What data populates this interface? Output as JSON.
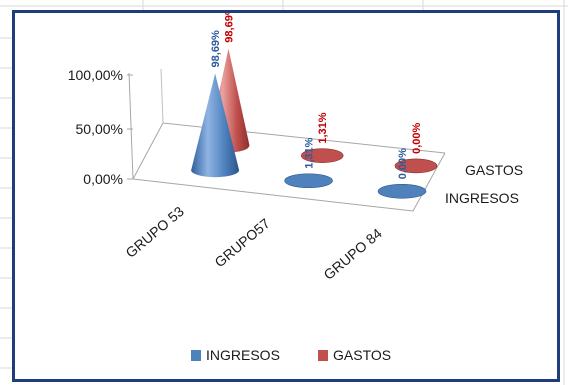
{
  "chart_data": {
    "type": "bar",
    "subtype": "3d-cone",
    "categories": [
      "GRUPO 53",
      "GRUPO57",
      "GRUPO 84"
    ],
    "series": [
      {
        "name": "INGRESOS",
        "values": [
          98.69,
          1.31,
          0.0
        ],
        "labels": [
          "98,69%",
          "1,31%",
          "0,00%"
        ],
        "color": "#4f81bd"
      },
      {
        "name": "GASTOS",
        "values": [
          98.69,
          1.31,
          0.0
        ],
        "labels": [
          "98,69%",
          "1,31%",
          "0,00%"
        ],
        "color": "#c0504d"
      }
    ],
    "yticks": [
      "0,00%",
      "50,00%",
      "100,00%"
    ],
    "ylim": [
      0,
      100
    ],
    "legend": "bottom",
    "grid": false
  },
  "colors": {
    "ingresos": "#4f81bd",
    "gastos": "#c0504d",
    "ingresos_label": "#2e5a9c",
    "gastos_label": "#c00000"
  }
}
